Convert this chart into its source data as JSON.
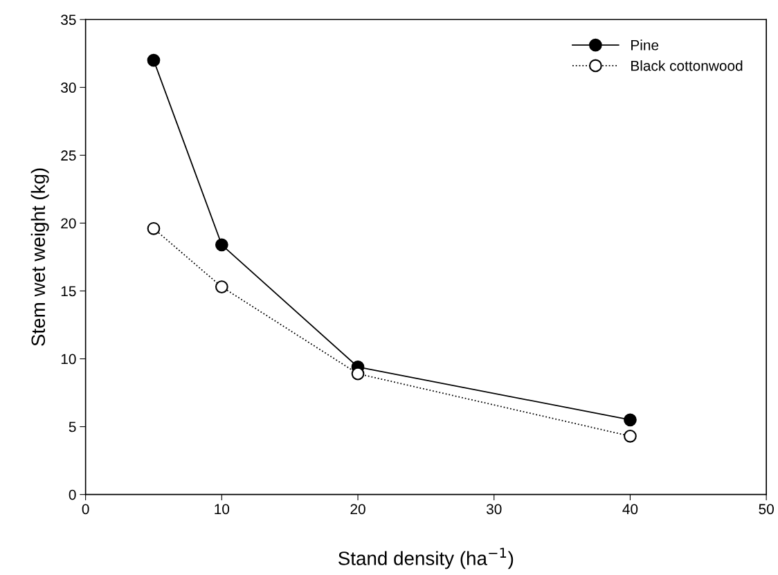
{
  "chart_data": {
    "type": "line",
    "xlabel": "Stand density (ha$^{−1}$)",
    "ylabel": "Stem wet weight (kg)",
    "xlim": [
      0,
      50
    ],
    "xticks": [
      0,
      10,
      20,
      30,
      40,
      50
    ],
    "ylim": [
      0,
      35
    ],
    "yticks": [
      0,
      5,
      10,
      15,
      20,
      25,
      30,
      35
    ],
    "grid": false,
    "legend": "top right",
    "marker": "circle",
    "series": [
      {
        "name": "Pine",
        "color": "#000000",
        "line_style": "solid",
        "x": [
          5,
          10,
          20,
          40
        ],
        "values": [
          32.0,
          18.4,
          9.4,
          5.5
        ]
      },
      {
        "name": "Black cottonwood",
        "color": "#000000",
        "line_style": "dotted",
        "x": [
          5,
          10,
          20,
          40
        ],
        "values": [
          19.6,
          15.3,
          8.9,
          4.3
        ]
      }
    ]
  }
}
